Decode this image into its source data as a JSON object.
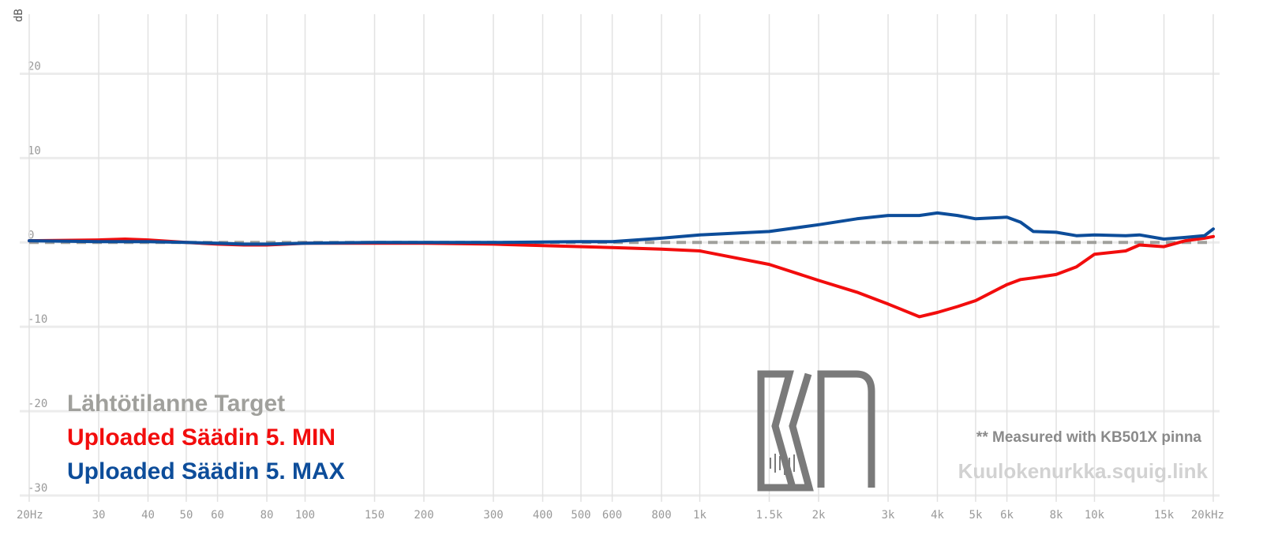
{
  "chart_data": {
    "type": "line",
    "y_label": "dB",
    "x_log": true,
    "xlim": [
      20,
      20000
    ],
    "ylim": [
      -30,
      25
    ],
    "xticks": [
      {
        "value": 20,
        "label": "20Hz"
      },
      30,
      40,
      50,
      60,
      80,
      100,
      150,
      200,
      300,
      400,
      500,
      600,
      800,
      {
        "value": 1000,
        "label": "1k"
      },
      {
        "value": 1500,
        "label": "1.5k"
      },
      {
        "value": 2000,
        "label": "2k"
      },
      {
        "value": 3000,
        "label": "3k"
      },
      {
        "value": 4000,
        "label": "4k"
      },
      {
        "value": 5000,
        "label": "5k"
      },
      {
        "value": 6000,
        "label": "6k"
      },
      {
        "value": 8000,
        "label": "8k"
      },
      {
        "value": 10000,
        "label": "10k"
      },
      {
        "value": 15000,
        "label": "15k"
      },
      {
        "value": 20000,
        "label": "20kHz"
      }
    ],
    "yticks": [
      -30,
      -20,
      -10,
      0,
      10,
      20
    ],
    "grid": true,
    "legend": "lower left",
    "x": [
      20,
      30,
      35,
      40,
      50,
      60,
      70,
      80,
      100,
      150,
      200,
      300,
      500,
      600,
      800,
      1000,
      1500,
      2000,
      2500,
      3000,
      3600,
      4000,
      4500,
      5000,
      6000,
      6500,
      7000,
      8000,
      9000,
      10000,
      12000,
      13000,
      15000,
      17000,
      19000,
      20000
    ],
    "series": [
      {
        "name": "Lähtötilanne Target",
        "color": "#a0a09c",
        "dashed": true,
        "values": [
          0,
          0,
          0,
          0,
          0,
          0,
          0,
          0,
          0,
          0,
          0,
          0,
          0,
          0,
          0,
          0,
          0,
          0,
          0,
          0,
          0,
          0,
          0,
          0,
          0,
          0,
          0,
          0,
          0,
          0,
          0,
          0,
          0,
          0,
          0,
          0
        ]
      },
      {
        "name": "Uploaded Säädin 5. MIN",
        "color": "#f20d0d",
        "values": [
          0.2,
          0.3,
          0.4,
          0.3,
          0,
          -0.2,
          -0.3,
          -0.3,
          -0.1,
          -0.1,
          -0.1,
          -0.2,
          -0.5,
          -0.6,
          -0.8,
          -1.0,
          -2.6,
          -4.5,
          -5.9,
          -7.3,
          -8.8,
          -8.3,
          -7.6,
          -6.9,
          -5.0,
          -4.4,
          -4.2,
          -3.8,
          -2.9,
          -1.4,
          -1.0,
          -0.3,
          -0.5,
          0.2,
          0.5,
          0.7
        ]
      },
      {
        "name": "Uploaded Säädin 5. MAX",
        "color": "#0d4d9a",
        "values": [
          0.2,
          0.1,
          0.1,
          0.1,
          0,
          -0.1,
          -0.2,
          -0.2,
          -0.1,
          0,
          0,
          0,
          0.1,
          0.1,
          0.5,
          0.9,
          1.3,
          2.1,
          2.8,
          3.2,
          3.2,
          3.5,
          3.2,
          2.8,
          3.0,
          2.4,
          1.3,
          1.2,
          0.8,
          0.9,
          0.8,
          0.9,
          0.4,
          0.6,
          0.8,
          1.6
        ]
      }
    ],
    "annotation": "** Measured with KB501X pinna",
    "watermark": "Kuulokenurkka.squig.link"
  }
}
